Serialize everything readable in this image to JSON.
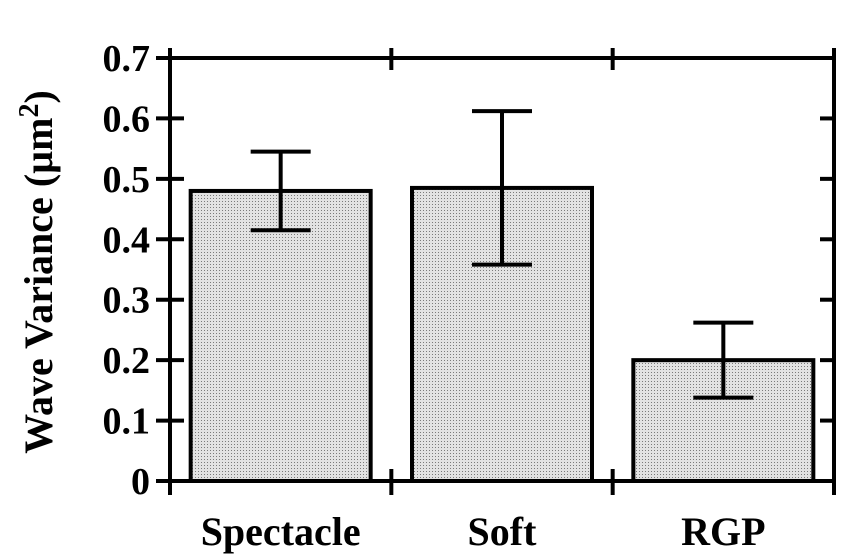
{
  "chart_data": {
    "type": "bar",
    "categories": [
      "Spectacle",
      "Soft",
      "RGP"
    ],
    "values": [
      0.48,
      0.485,
      0.2
    ],
    "error_bars": [
      {
        "low": 0.415,
        "high": 0.545
      },
      {
        "low": 0.358,
        "high": 0.612
      },
      {
        "low": 0.138,
        "high": 0.262
      }
    ],
    "ylabel": "Wave Variance (µm",
    "ylabel_superscript": "2",
    "ylabel_close": ")",
    "ylim": [
      0,
      0.7
    ],
    "yticks": [
      "0",
      "0.1",
      "0.2",
      "0.3",
      "0.4",
      "0.5",
      "0.6",
      "0.7"
    ],
    "bar_fill": "#d9d9d9",
    "grid": false
  }
}
